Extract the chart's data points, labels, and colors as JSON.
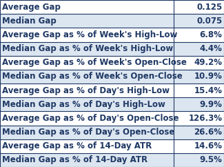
{
  "rows": [
    [
      "Average Gap",
      "0.125"
    ],
    [
      "Median Gap",
      "0.075"
    ],
    [
      "Average Gap as % of Week's High-Low",
      "6.8%"
    ],
    [
      "Median Gap as % of Week's High-Low",
      "4.4%"
    ],
    [
      "Average Gap as % of Week's Open-Close",
      "49.2%"
    ],
    [
      "Median Gap as % of Week's Open-Close",
      "10.9%"
    ],
    [
      "Average Gap as % of Day's High-Low",
      "15.4%"
    ],
    [
      "Median Gap as % of Day's High-Low",
      "9.9%"
    ],
    [
      "Average Gap as % of Day's Open-Close",
      "126.3%"
    ],
    [
      "Median Gap as % of Day's Open-Close",
      "26.6%"
    ],
    [
      "Average Gap as % of 14-Day ATR",
      "14.6%"
    ],
    [
      "Median Gap as % of 14-Day ATR",
      "9.5%"
    ]
  ],
  "row_colors_odd": "#ffffff",
  "row_colors_even": "#dce6f1",
  "text_color": "#1f3864",
  "border_color": "#1f3864",
  "col_split": 0.775,
  "font_size": 8.5,
  "fig_width": 3.25,
  "fig_height": 2.42,
  "dpi": 100
}
